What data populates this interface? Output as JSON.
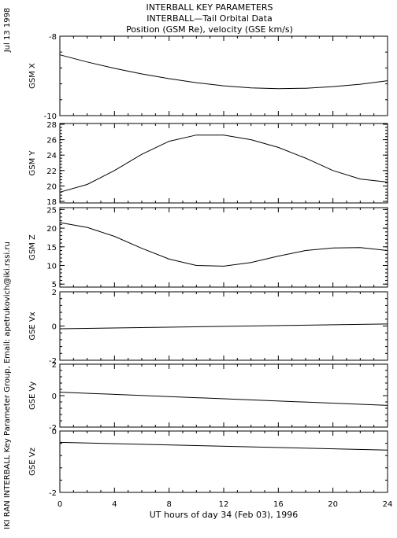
{
  "header": {
    "line1": "INTERBALL KEY PARAMETERS",
    "line2": "INTERBALL—Tail Orbital Data",
    "line3": "Position (GSM Re), velocity (GSE km/s)"
  },
  "side": {
    "date": "Jul 13 1998",
    "credit": "IKI RAN INTERBALL Key Parameter Group, Email: apetrukovich@iki.rssi.ru"
  },
  "xaxis": {
    "label": "UT hours of day  34 (Feb 03), 1996",
    "ticks": [
      "0",
      "4",
      "8",
      "12",
      "16",
      "20",
      "24"
    ]
  },
  "chart_data": [
    {
      "type": "line",
      "ylabel": "GSM X",
      "ylim": [
        -10,
        -8
      ],
      "yticks": [
        "-8",
        "-10"
      ],
      "x": [
        0,
        2,
        4,
        6,
        8,
        10,
        12,
        14,
        16,
        18,
        20,
        22,
        24
      ],
      "values": [
        -8.47,
        -8.65,
        -8.81,
        -8.95,
        -9.07,
        -9.17,
        -9.25,
        -9.3,
        -9.32,
        -9.31,
        -9.27,
        -9.21,
        -9.12
      ]
    },
    {
      "type": "line",
      "ylabel": "GSM Y",
      "ylim": [
        17.8,
        28.1
      ],
      "yticks": [
        "28",
        "26",
        "24",
        "22",
        "20",
        "18"
      ],
      "x": [
        0,
        2,
        4,
        6,
        8,
        10,
        12,
        14,
        16,
        18,
        20,
        22,
        24
      ],
      "values": [
        19.2,
        20.2,
        22.0,
        24.1,
        25.8,
        26.6,
        26.6,
        26.0,
        25.0,
        23.6,
        22.0,
        20.9,
        20.5
      ]
    },
    {
      "type": "line",
      "ylabel": "GSM Z",
      "ylim": [
        4.2,
        25.5
      ],
      "yticks": [
        "25",
        "20",
        "15",
        "10",
        "5"
      ],
      "x": [
        0,
        2,
        4,
        6,
        8,
        10,
        12,
        14,
        16,
        18,
        20,
        22,
        24
      ],
      "values": [
        21.5,
        20.2,
        17.8,
        14.6,
        11.7,
        10.0,
        9.8,
        10.8,
        12.5,
        14.0,
        14.7,
        14.8,
        14.0
      ]
    },
    {
      "type": "line",
      "ylabel": "GSE Vx",
      "ylim": [
        -2,
        2
      ],
      "yticks": [
        "2",
        "0",
        "-2"
      ],
      "x": [
        0,
        24
      ],
      "values": [
        -0.16,
        0.12
      ]
    },
    {
      "type": "line",
      "ylabel": "GSE Vy",
      "ylim": [
        -2,
        2
      ],
      "yticks": [
        "2",
        "0",
        "-2"
      ],
      "x": [
        0,
        24
      ],
      "values": [
        0.22,
        -0.62
      ]
    },
    {
      "type": "line",
      "ylabel": "GSE Vz",
      "ylim": [
        -2,
        0
      ],
      "yticks": [
        "0",
        "-2"
      ],
      "x": [
        0,
        24
      ],
      "values": [
        -0.37,
        -0.62
      ]
    }
  ]
}
